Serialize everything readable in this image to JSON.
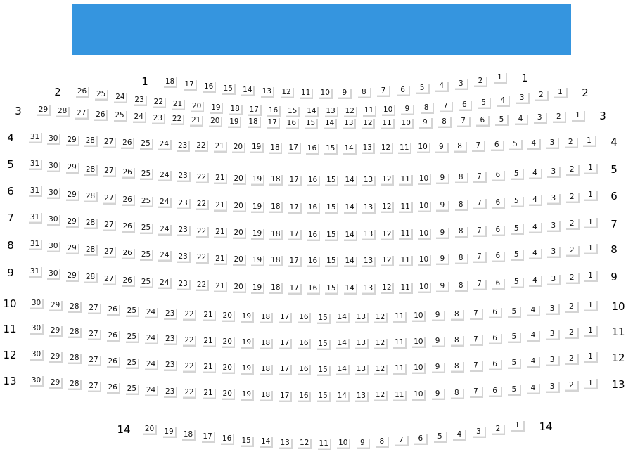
{
  "stage": {
    "color": "#3595df"
  },
  "rows": [
    {
      "label": "1",
      "seat_count": 18
    },
    {
      "label": "2",
      "seat_count": 26
    },
    {
      "label": "3",
      "seat_count": 29
    },
    {
      "label": "4",
      "seat_count": 31
    },
    {
      "label": "5",
      "seat_count": 31
    },
    {
      "label": "6",
      "seat_count": 31
    },
    {
      "label": "7",
      "seat_count": 31
    },
    {
      "label": "8",
      "seat_count": 31
    },
    {
      "label": "9",
      "seat_count": 31
    },
    {
      "label": "10",
      "seat_count": 30
    },
    {
      "label": "11",
      "seat_count": 30
    },
    {
      "label": "12",
      "seat_count": 30
    },
    {
      "label": "13",
      "seat_count": 30
    },
    {
      "label": "14",
      "seat_count": 20
    }
  ]
}
